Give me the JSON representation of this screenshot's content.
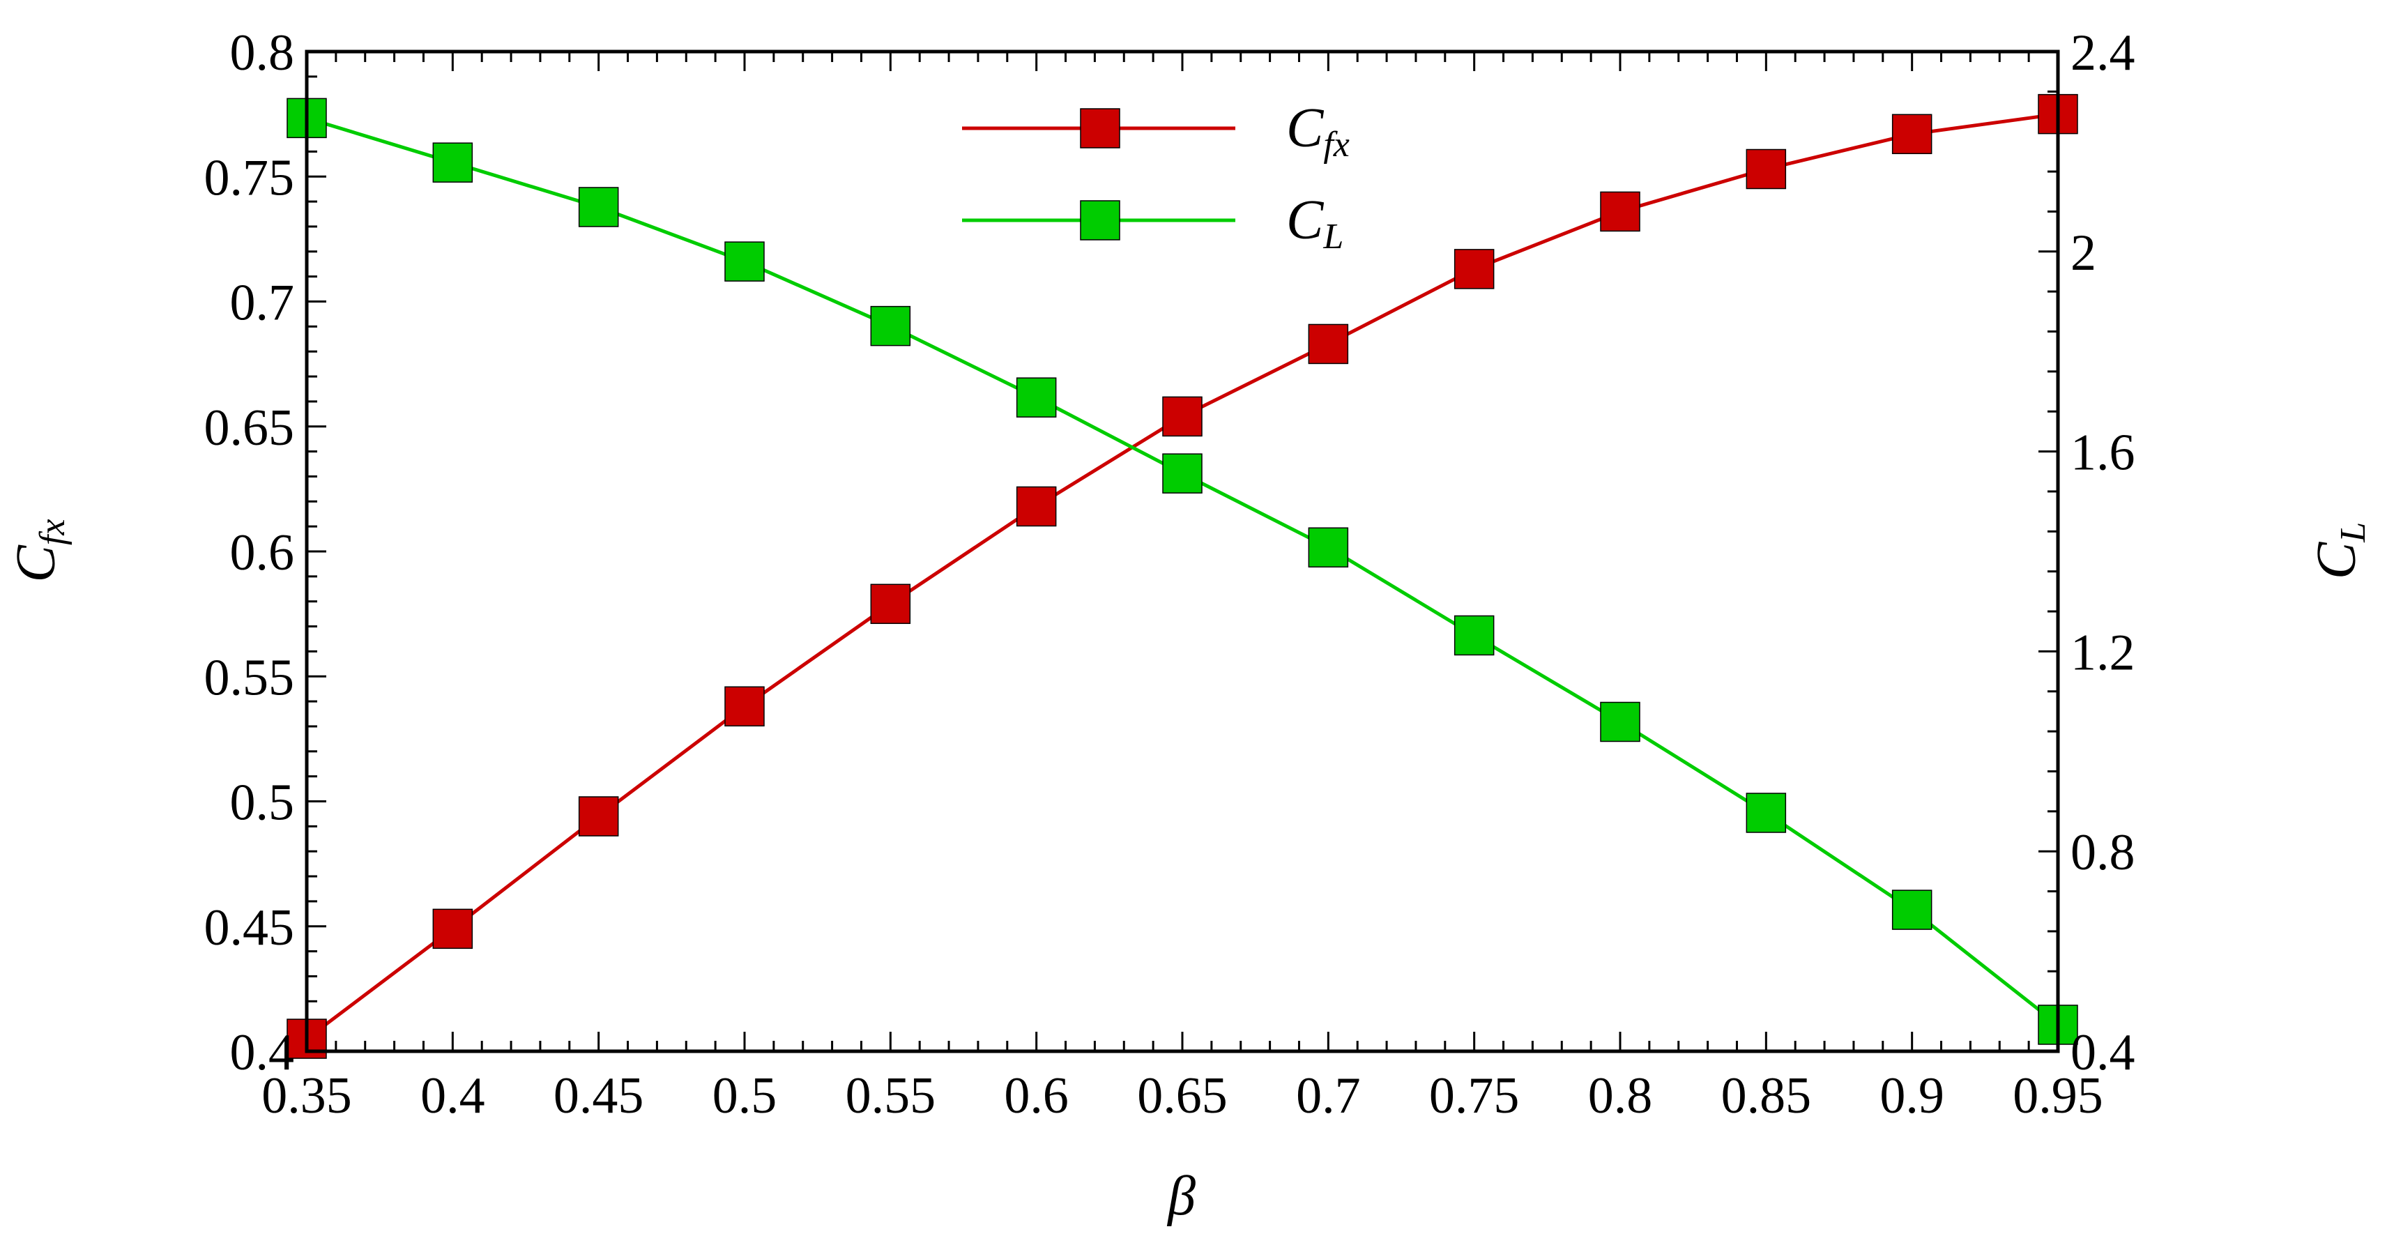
{
  "chart_data": {
    "type": "line",
    "title": "",
    "xlabel": "β",
    "ylabel_left": {
      "main": "C",
      "sub": "fx"
    },
    "ylabel_right": {
      "main": "C",
      "sub": "L"
    },
    "xlim": [
      0.35,
      0.95
    ],
    "ylim_left": [
      0.4,
      0.8
    ],
    "ylim_right": [
      0.4,
      2.4
    ],
    "x_ticks": [
      "0.35",
      "0.4",
      "0.45",
      "0.5",
      "0.55",
      "0.6",
      "0.65",
      "0.7",
      "0.75",
      "0.8",
      "0.85",
      "0.9",
      "0.95"
    ],
    "y_left_ticks": [
      "0.4",
      "0.45",
      "0.5",
      "0.55",
      "0.6",
      "0.65",
      "0.7",
      "0.75",
      "0.8"
    ],
    "y_right_ticks": [
      "0.4",
      "0.8",
      "1.2",
      "1.6",
      "2",
      "2.4"
    ],
    "grid": false,
    "legend_position": "top-center",
    "x": [
      0.35,
      0.4,
      0.45,
      0.5,
      0.55,
      0.6,
      0.65,
      0.7,
      0.75,
      0.8,
      0.85,
      0.9,
      0.95
    ],
    "series": [
      {
        "name": "C_fx",
        "legend_main": "C",
        "legend_sub": "fx",
        "axis": "left",
        "color": "#cc0000",
        "values": [
          0.405,
          0.449,
          0.494,
          0.538,
          0.579,
          0.618,
          0.654,
          0.683,
          0.713,
          0.736,
          0.753,
          0.767,
          0.775
        ]
      },
      {
        "name": "C_L",
        "legend_main": "C",
        "legend_sub": "L",
        "axis": "right",
        "color": "#00cc00",
        "values": [
          2.267,
          2.178,
          2.089,
          1.98,
          1.851,
          1.708,
          1.556,
          1.408,
          1.232,
          1.059,
          0.877,
          0.683,
          0.453
        ]
      }
    ]
  }
}
